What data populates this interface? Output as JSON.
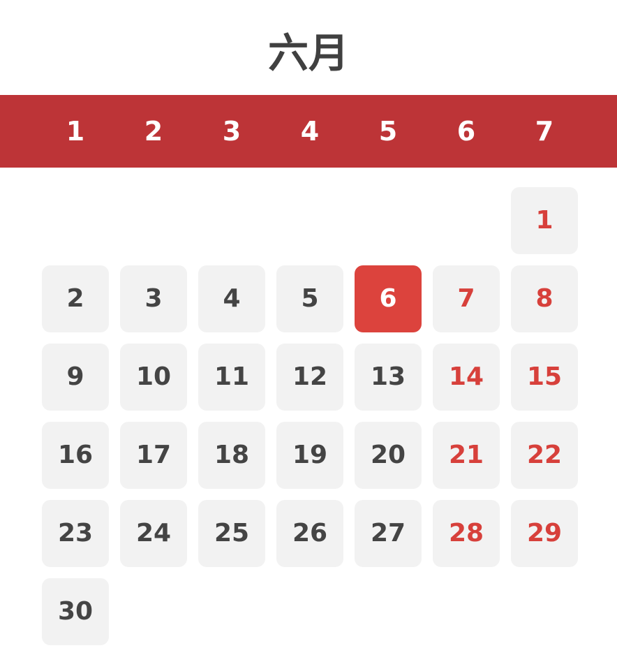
{
  "calendar": {
    "month_title": "六月",
    "weekday_headers": [
      "1",
      "2",
      "3",
      "4",
      "5",
      "6",
      "7"
    ],
    "selected_day": "6",
    "colors": {
      "header_bar": "#bd3437",
      "weekend_text": "#d7403b",
      "today_background": "#dc433d",
      "cell_background": "#f2f2f2",
      "text": "#444444"
    },
    "weeks": [
      [
        "",
        "",
        "",
        "",
        "",
        "",
        "1"
      ],
      [
        "2",
        "3",
        "4",
        "5",
        "6",
        "7",
        "8"
      ],
      [
        "9",
        "10",
        "11",
        "12",
        "13",
        "14",
        "15"
      ],
      [
        "16",
        "17",
        "18",
        "19",
        "20",
        "21",
        "22"
      ],
      [
        "23",
        "24",
        "25",
        "26",
        "27",
        "28",
        "29"
      ],
      [
        "30",
        "",
        "",
        "",
        "",
        "",
        ""
      ]
    ]
  }
}
